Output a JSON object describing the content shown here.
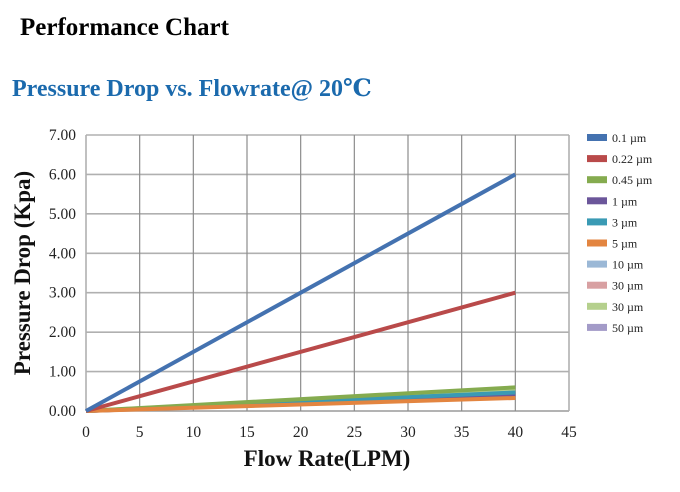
{
  "page": {
    "title": "Performance Chart"
  },
  "chart_data": {
    "type": "line",
    "title": "Pressure Drop vs. Flowrate@ 20℃",
    "xlabel": "Flow Rate(LPM)",
    "ylabel": "Pressure Drop (Kpa)",
    "xlim": [
      0,
      45
    ],
    "ylim": [
      0,
      7
    ],
    "xticks": [
      0,
      5,
      10,
      15,
      20,
      25,
      30,
      35,
      40,
      45
    ],
    "xtick_labels": [
      "0",
      "5",
      "10",
      "15",
      "20",
      "25",
      "30",
      "35",
      "40",
      "45"
    ],
    "yticks": [
      0,
      1,
      2,
      3,
      4,
      5,
      6,
      7
    ],
    "ytick_labels": [
      "0.00",
      "1.00",
      "2.00",
      "3.00",
      "4.00",
      "5.00",
      "6.00",
      "7.00"
    ],
    "grid": true,
    "legend_position": "right",
    "x": [
      0,
      40
    ],
    "series": [
      {
        "name": "0.1 µm",
        "color": "#4472b0",
        "values": [
          0,
          6.0
        ]
      },
      {
        "name": "0.22 µm",
        "color": "#b94a4a",
        "values": [
          0,
          3.0
        ]
      },
      {
        "name": "0.45 µm",
        "color": "#85ab4f",
        "values": [
          0,
          0.6
        ]
      },
      {
        "name": "1 µm",
        "color": "#6b569a",
        "values": [
          0,
          0.42
        ]
      },
      {
        "name": "3 µm",
        "color": "#3a9ab4",
        "values": [
          0,
          0.47
        ]
      },
      {
        "name": "5 µm",
        "color": "#e38540",
        "values": [
          0,
          0.33
        ]
      },
      {
        "name": "10 µm",
        "color": "#9bb8d6",
        "values": [
          0,
          0.45
        ]
      },
      {
        "name": "30 µm",
        "color": "#d8a0a2",
        "values": [
          0,
          0.4
        ]
      },
      {
        "name": "30 µm",
        "color": "#b5d08d",
        "values": [
          0,
          0.55
        ]
      },
      {
        "name": "50 µm",
        "color": "#a39bc8",
        "values": [
          0,
          0.38
        ]
      }
    ]
  }
}
